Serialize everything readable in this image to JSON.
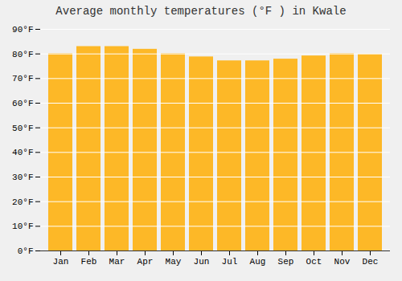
{
  "chart_data": {
    "type": "bar",
    "title": "Average monthly temperatures (°F ) in Kwale",
    "categories": [
      "Jan",
      "Feb",
      "Mar",
      "Apr",
      "May",
      "Jun",
      "Jul",
      "Aug",
      "Sep",
      "Oct",
      "Nov",
      "Dec"
    ],
    "values": [
      80.1,
      83.0,
      83.0,
      81.9,
      80.1,
      78.8,
      77.2,
      77.2,
      77.9,
      79.2,
      80.1,
      79.9
    ],
    "color": "#FDB827",
    "ylim": [
      0,
      90
    ],
    "yticks": [
      {
        "value": 0,
        "label": "0°F"
      },
      {
        "value": 10,
        "label": "10°F"
      },
      {
        "value": 20,
        "label": "20°F"
      },
      {
        "value": 30,
        "label": "30°F"
      },
      {
        "value": 40,
        "label": "40°F"
      },
      {
        "value": 50,
        "label": "50°F"
      },
      {
        "value": 60,
        "label": "60°F"
      },
      {
        "value": 70,
        "label": "70°F"
      },
      {
        "value": 80,
        "label": "80°F"
      },
      {
        "value": 90,
        "label": "90°F"
      }
    ],
    "grid": true
  }
}
